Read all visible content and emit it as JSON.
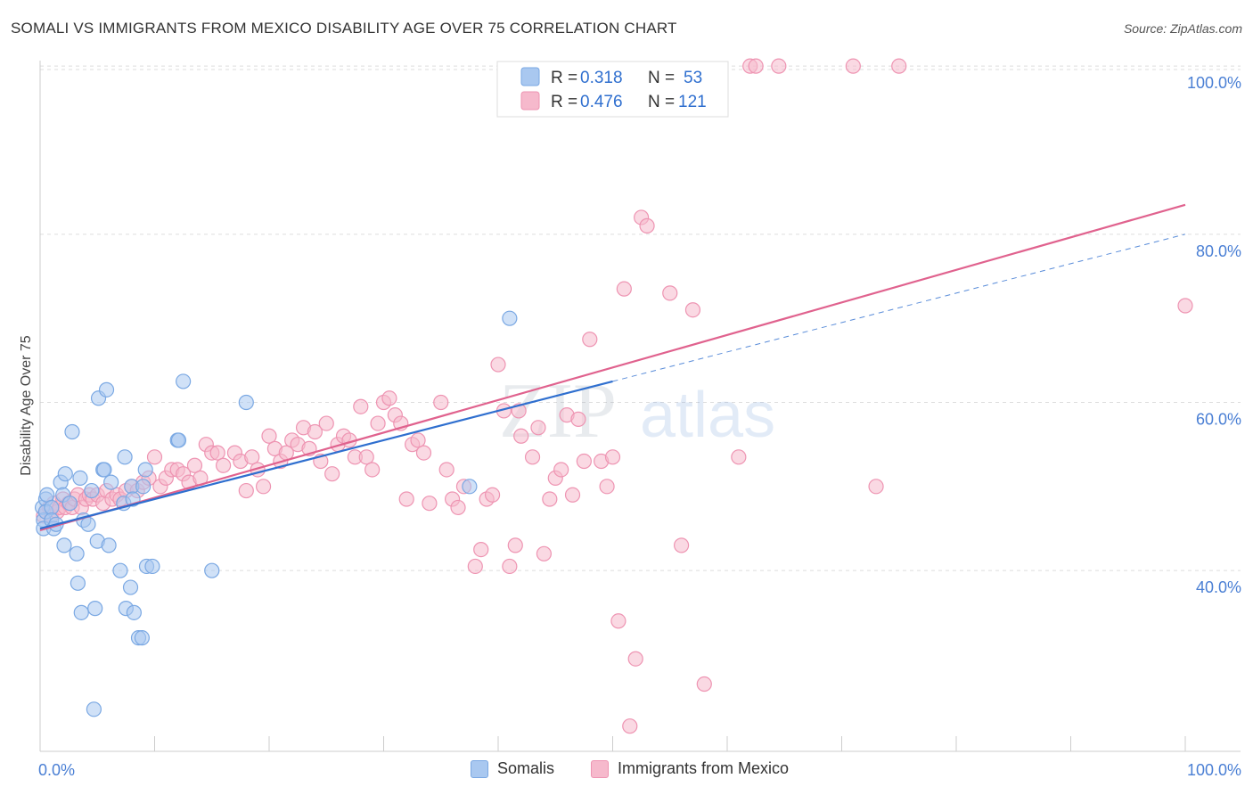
{
  "title": "SOMALI VS IMMIGRANTS FROM MEXICO DISABILITY AGE OVER 75 CORRELATION CHART",
  "source": "Source: ZipAtlas.com",
  "watermark": {
    "zip": "ZIP",
    "atlas": "atlas"
  },
  "colors": {
    "somali_fill": "#a9c8f0",
    "somali_stroke": "#7aa8e3",
    "somali_line": "#2f6fcf",
    "mexico_fill": "#f6b9cc",
    "mexico_stroke": "#ee94b2",
    "mexico_line": "#e0628e",
    "tick_label": "#4a7fd4",
    "grid": "#dddddd"
  },
  "stats": {
    "r_label": "R =",
    "n_label": "N =",
    "rows": [
      {
        "series": "Somalis",
        "r": "0.318",
        "n": "53"
      },
      {
        "series": "Immigrants from Mexico",
        "r": "0.476",
        "n": "121"
      }
    ]
  },
  "legend": [
    {
      "label": "Somalis"
    },
    {
      "label": "Immigrants from Mexico"
    }
  ],
  "chart_data": {
    "type": "scatter",
    "title": "SOMALI VS IMMIGRANTS FROM MEXICO DISABILITY AGE OVER 75 CORRELATION CHART",
    "xlabel": "",
    "ylabel": "Disability Age Over 75",
    "xlim": [
      0,
      100
    ],
    "ylim": [
      18.5,
      101.5
    ],
    "x_tick_labels": [
      {
        "value": 0,
        "label": "0.0%"
      },
      {
        "value": 100,
        "label": "100.0%"
      }
    ],
    "y_tick_labels": [
      {
        "value": 40,
        "label": "40.0%"
      },
      {
        "value": 60,
        "label": "60.0%"
      },
      {
        "value": 80,
        "label": "80.0%"
      },
      {
        "value": 100,
        "label": "100.0%"
      }
    ],
    "grid": true,
    "legend_position": "bottom",
    "series": [
      {
        "name": "Somalis",
        "r": 0.318,
        "n": 53,
        "trend": {
          "x0": 0,
          "y0": 45.0,
          "x1": 50,
          "y1": 62.5,
          "dash_to": 100,
          "dash_y": 80.0
        },
        "points": [
          [
            0.2,
            47.5
          ],
          [
            0.3,
            46.0
          ],
          [
            0.3,
            45.0
          ],
          [
            0.5,
            48.5
          ],
          [
            0.5,
            47.0
          ],
          [
            0.6,
            49.0
          ],
          [
            1.0,
            47.5
          ],
          [
            1.0,
            46.0
          ],
          [
            1.2,
            45.0
          ],
          [
            1.4,
            45.5
          ],
          [
            1.8,
            50.5
          ],
          [
            2.0,
            49.0
          ],
          [
            2.1,
            43.0
          ],
          [
            2.2,
            51.5
          ],
          [
            2.6,
            48.0
          ],
          [
            2.8,
            56.5
          ],
          [
            3.2,
            42.0
          ],
          [
            3.3,
            38.5
          ],
          [
            3.5,
            51.0
          ],
          [
            3.6,
            35.0
          ],
          [
            3.8,
            46.0
          ],
          [
            4.2,
            45.5
          ],
          [
            4.5,
            49.5
          ],
          [
            4.7,
            23.5
          ],
          [
            4.8,
            35.5
          ],
          [
            5.0,
            43.5
          ],
          [
            5.1,
            60.5
          ],
          [
            5.5,
            52.0
          ],
          [
            5.6,
            52.0
          ],
          [
            5.8,
            61.5
          ],
          [
            6.0,
            43.0
          ],
          [
            6.2,
            50.5
          ],
          [
            7.0,
            40.0
          ],
          [
            7.3,
            48.0
          ],
          [
            7.4,
            53.5
          ],
          [
            7.5,
            35.5
          ],
          [
            7.9,
            38.0
          ],
          [
            8.0,
            50.0
          ],
          [
            8.1,
            48.5
          ],
          [
            8.2,
            35.0
          ],
          [
            8.6,
            32.0
          ],
          [
            8.9,
            32.0
          ],
          [
            9.0,
            50.0
          ],
          [
            9.2,
            52.0
          ],
          [
            9.3,
            40.5
          ],
          [
            9.8,
            40.5
          ],
          [
            12.0,
            55.5
          ],
          [
            12.1,
            55.5
          ],
          [
            12.5,
            62.5
          ],
          [
            15.0,
            40.0
          ],
          [
            18.0,
            60.0
          ],
          [
            37.5,
            50.0
          ],
          [
            41.0,
            70.0
          ]
        ]
      },
      {
        "name": "Immigrants from Mexico",
        "r": 0.476,
        "n": 121,
        "trend": {
          "x0": 0,
          "y0": 44.8,
          "x1": 100,
          "y1": 83.5
        },
        "points": [
          [
            0.3,
            46.5
          ],
          [
            0.5,
            47.0
          ],
          [
            0.8,
            47.5
          ],
          [
            1.0,
            46.5
          ],
          [
            1.2,
            48.0
          ],
          [
            1.5,
            47.0
          ],
          [
            1.7,
            47.5
          ],
          [
            2.0,
            48.5
          ],
          [
            2.2,
            47.5
          ],
          [
            2.5,
            48.0
          ],
          [
            2.8,
            47.5
          ],
          [
            3.0,
            48.5
          ],
          [
            3.3,
            49.0
          ],
          [
            3.6,
            47.5
          ],
          [
            4.0,
            48.5
          ],
          [
            4.3,
            49.0
          ],
          [
            4.6,
            48.5
          ],
          [
            5.0,
            49.0
          ],
          [
            5.5,
            48.0
          ],
          [
            5.8,
            49.5
          ],
          [
            6.3,
            48.5
          ],
          [
            6.7,
            49.0
          ],
          [
            7.0,
            48.5
          ],
          [
            7.5,
            49.5
          ],
          [
            8.0,
            50.0
          ],
          [
            8.5,
            49.5
          ],
          [
            9.0,
            50.5
          ],
          [
            9.5,
            51.0
          ],
          [
            10.0,
            53.5
          ],
          [
            10.5,
            50.0
          ],
          [
            11.0,
            51.0
          ],
          [
            11.5,
            52.0
          ],
          [
            12.0,
            52.0
          ],
          [
            12.5,
            51.5
          ],
          [
            13.0,
            50.5
          ],
          [
            13.5,
            52.5
          ],
          [
            14.0,
            51.0
          ],
          [
            14.5,
            55.0
          ],
          [
            15.0,
            54.0
          ],
          [
            15.5,
            54.0
          ],
          [
            16.0,
            52.5
          ],
          [
            17.0,
            54.0
          ],
          [
            17.5,
            53.0
          ],
          [
            18.0,
            49.5
          ],
          [
            18.5,
            53.5
          ],
          [
            19.0,
            52.0
          ],
          [
            19.5,
            50.0
          ],
          [
            20.0,
            56.0
          ],
          [
            20.5,
            54.5
          ],
          [
            21.0,
            53.0
          ],
          [
            21.5,
            54.0
          ],
          [
            22.0,
            55.5
          ],
          [
            22.5,
            55.0
          ],
          [
            23.0,
            57.0
          ],
          [
            23.5,
            54.5
          ],
          [
            24.0,
            56.5
          ],
          [
            24.5,
            53.0
          ],
          [
            25.0,
            57.5
          ],
          [
            25.5,
            51.5
          ],
          [
            26.0,
            55.0
          ],
          [
            26.5,
            56.0
          ],
          [
            27.0,
            55.5
          ],
          [
            27.5,
            53.5
          ],
          [
            28.0,
            59.5
          ],
          [
            28.5,
            53.5
          ],
          [
            29.0,
            52.0
          ],
          [
            29.5,
            57.5
          ],
          [
            30.0,
            60.0
          ],
          [
            30.5,
            60.5
          ],
          [
            31.0,
            58.5
          ],
          [
            31.5,
            57.5
          ],
          [
            32.0,
            48.5
          ],
          [
            32.5,
            55.0
          ],
          [
            33.0,
            55.5
          ],
          [
            33.5,
            54.0
          ],
          [
            34.0,
            48.0
          ],
          [
            35.0,
            60.0
          ],
          [
            35.5,
            52.0
          ],
          [
            36.0,
            48.5
          ],
          [
            36.5,
            47.5
          ],
          [
            37.0,
            50.0
          ],
          [
            38.0,
            40.5
          ],
          [
            38.5,
            42.5
          ],
          [
            39.0,
            48.5
          ],
          [
            39.5,
            49.0
          ],
          [
            40.0,
            64.5
          ],
          [
            40.5,
            59.0
          ],
          [
            41.0,
            40.5
          ],
          [
            41.5,
            43.0
          ],
          [
            41.8,
            59.0
          ],
          [
            42.0,
            56.0
          ],
          [
            43.0,
            53.5
          ],
          [
            43.5,
            57.0
          ],
          [
            44.0,
            42.0
          ],
          [
            44.5,
            48.5
          ],
          [
            45.0,
            51.0
          ],
          [
            45.5,
            52.0
          ],
          [
            46.0,
            58.5
          ],
          [
            46.5,
            49.0
          ],
          [
            47.0,
            58.0
          ],
          [
            47.5,
            53.0
          ],
          [
            48.0,
            67.5
          ],
          [
            49.0,
            53.0
          ],
          [
            49.5,
            50.0
          ],
          [
            50.0,
            53.5
          ],
          [
            50.5,
            34.0
          ],
          [
            51.0,
            73.5
          ],
          [
            51.5,
            21.5
          ],
          [
            52.0,
            29.5
          ],
          [
            52.5,
            82.0
          ],
          [
            53.0,
            81.0
          ],
          [
            55.0,
            73.0
          ],
          [
            56.0,
            43.0
          ],
          [
            57.0,
            71.0
          ],
          [
            58.0,
            26.5
          ],
          [
            61.0,
            53.5
          ],
          [
            62.0,
            100.0
          ],
          [
            62.5,
            100.0
          ],
          [
            64.5,
            100.0
          ],
          [
            71.0,
            100.0
          ],
          [
            73.0,
            50.0
          ],
          [
            75.0,
            100.0
          ],
          [
            100.0,
            71.5
          ]
        ]
      }
    ]
  }
}
